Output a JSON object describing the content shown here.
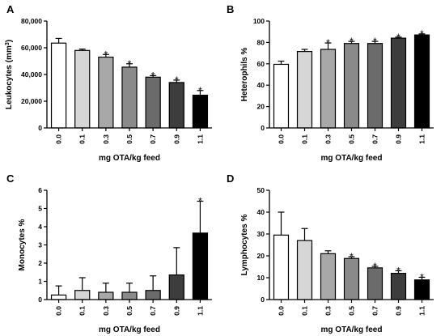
{
  "chart_data": [
    {
      "id": "A",
      "type": "bar",
      "panel_label": "A",
      "categories": [
        "0.0",
        "0.1",
        "0.3",
        "0.5",
        "0.7",
        "0.9",
        "1.1"
      ],
      "values": [
        63500,
        58000,
        53000,
        45500,
        38000,
        34000,
        24500
      ],
      "errors": [
        3500,
        1000,
        2000,
        2500,
        1200,
        1800,
        3500
      ],
      "significant": [
        false,
        false,
        true,
        true,
        true,
        true,
        true
      ],
      "ylim": [
        0,
        80000
      ],
      "yticks": [
        0,
        20000,
        40000,
        60000,
        80000
      ],
      "ytick_labels": [
        "0",
        "20,000",
        "40,000",
        "60,000",
        "80,000"
      ],
      "ylabel": "Leukocytes (mm",
      "ylabel_sup": "3",
      "ylabel_end": ")",
      "xlabel": "mg OTA/kg feed",
      "grid": false
    },
    {
      "id": "B",
      "type": "bar",
      "panel_label": "B",
      "categories": [
        "0.0",
        "0.1",
        "0.3",
        "0.5",
        "0.7",
        "0.9",
        "1.1"
      ],
      "values": [
        59.5,
        71.5,
        73.5,
        79,
        79,
        84,
        87
      ],
      "errors": [
        3,
        2,
        6,
        2,
        2,
        1,
        1
      ],
      "significant": [
        false,
        false,
        true,
        true,
        true,
        true,
        true
      ],
      "ylim": [
        0,
        100
      ],
      "yticks": [
        0,
        20,
        40,
        60,
        80,
        100
      ],
      "ytick_labels": [
        "0",
        "20",
        "40",
        "60",
        "80",
        "100"
      ],
      "ylabel": "Heterophils %",
      "xlabel": "mg OTA/kg feed",
      "grid": false
    },
    {
      "id": "C",
      "type": "bar",
      "panel_label": "C",
      "categories": [
        "0.0",
        "0.1",
        "0.3",
        "0.5",
        "0.7",
        "0.9",
        "1.1"
      ],
      "values": [
        0.25,
        0.5,
        0.4,
        0.4,
        0.5,
        1.35,
        3.65
      ],
      "errors": [
        0.5,
        0.7,
        0.5,
        0.5,
        0.8,
        1.5,
        1.75
      ],
      "significant": [
        false,
        false,
        false,
        false,
        false,
        false,
        true
      ],
      "ylim": [
        0,
        6
      ],
      "yticks": [
        0,
        1,
        2,
        3,
        4,
        5,
        6
      ],
      "ytick_labels": [
        "0",
        "1",
        "2",
        "3",
        "4",
        "5",
        "6"
      ],
      "ylabel": "Monocytes %",
      "xlabel": "mg OTA/kg feed",
      "grid": false
    },
    {
      "id": "D",
      "type": "bar",
      "panel_label": "D",
      "categories": [
        "0.0",
        "0.1",
        "0.3",
        "0.5",
        "0.7",
        "0.9",
        "1.1"
      ],
      "values": [
        29.5,
        27,
        21,
        18.8,
        14.5,
        12,
        9
      ],
      "errors": [
        10.5,
        5.5,
        1.3,
        0.8,
        0.7,
        1.2,
        1.2
      ],
      "significant": [
        false,
        false,
        false,
        true,
        true,
        true,
        true
      ],
      "ylim": [
        0,
        50
      ],
      "yticks": [
        0,
        10,
        20,
        30,
        40,
        50
      ],
      "ytick_labels": [
        "0",
        "10",
        "20",
        "30",
        "40",
        "50"
      ],
      "ylabel": "Lymphocytes %",
      "xlabel": "mg OTA/kg feed",
      "grid": false
    }
  ],
  "bar_colors": [
    "#ffffff",
    "#d6d6d6",
    "#a8a8a8",
    "#8a8a8a",
    "#6b6b6b",
    "#3d3d3d",
    "#000000"
  ],
  "significance_marker": "*"
}
